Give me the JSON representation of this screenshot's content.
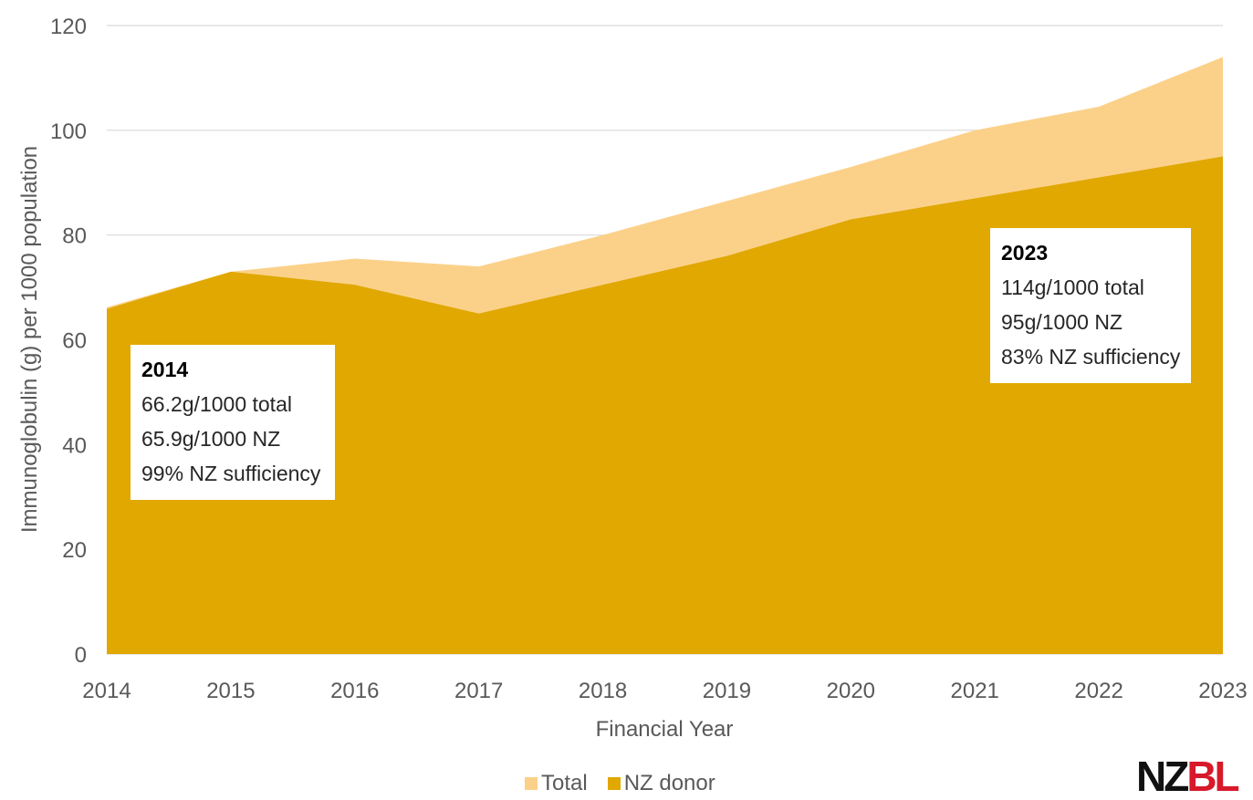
{
  "chart_data": {
    "type": "area",
    "xlabel": "Financial Year",
    "ylabel": "Immunoglobulin (g) per 1000 population",
    "x": [
      "2014",
      "2015",
      "2016",
      "2017",
      "2018",
      "2019",
      "2020",
      "2021",
      "2022",
      "2023"
    ],
    "ylim": [
      0,
      120
    ],
    "yticks": [
      0,
      20,
      40,
      60,
      80,
      100,
      120
    ],
    "grid": true,
    "legend_position": "bottom",
    "series": [
      {
        "name": "Total",
        "color": "#fbd18a",
        "values": [
          66.2,
          73,
          75.5,
          74,
          80,
          86.5,
          93,
          100,
          104.5,
          114
        ]
      },
      {
        "name": "NZ donor",
        "color": "#e0a800",
        "values": [
          65.9,
          73,
          70.5,
          65,
          70.5,
          76,
          83,
          87,
          91,
          95
        ]
      }
    ],
    "annotations": [
      {
        "year": "2014",
        "lines": [
          "66.2g/1000 total",
          "65.9g/1000 NZ",
          "99% NZ sufficiency"
        ]
      },
      {
        "year": "2023",
        "lines": [
          "114g/1000 total",
          "95g/1000 NZ",
          "83% NZ sufficiency"
        ]
      }
    ]
  },
  "legend": [
    "Total",
    "NZ donor"
  ],
  "logo": {
    "part1": "NZ",
    "part2": "BL"
  }
}
